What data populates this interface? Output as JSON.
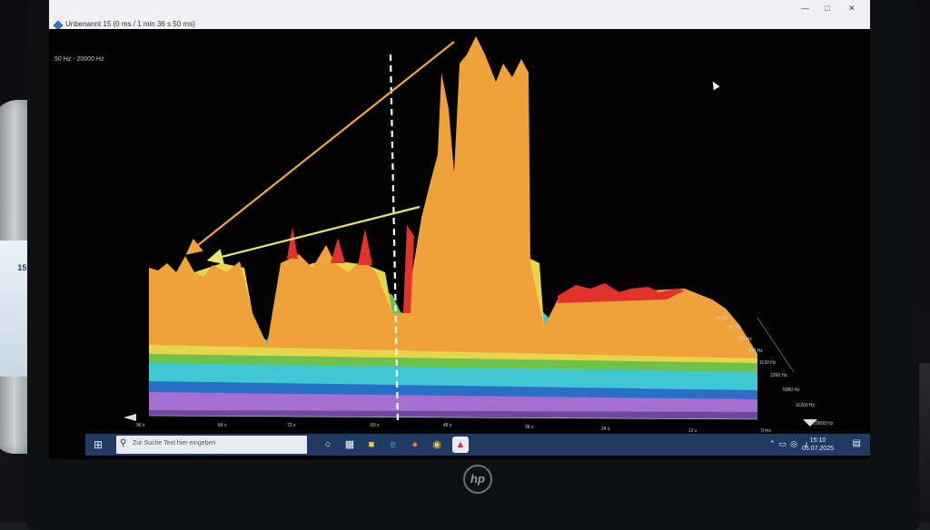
{
  "window": {
    "title": "Unbenannt 15 (0 ms / 1 min 36 s 50 ms)",
    "minimize_icon": "minimize-icon",
    "maximize_icon": "maximize-icon",
    "close_icon": "close-icon"
  },
  "spectrum": {
    "range_label": "50 Hz - 20000 Hz",
    "freq_axis": [
      "45 Hz",
      "100 Hz",
      "225 Hz",
      "500 Hz",
      "1130 Hz",
      "2260 Hz",
      "5080 Hz",
      "11200 Hz",
      "20000 Hz"
    ],
    "time_axis": [
      "96 s",
      "84 s",
      "72 s",
      "60 s",
      "48 s",
      "36 s",
      "24 s",
      "12 s",
      "0 ms"
    ],
    "colors": {
      "red": "#e2332a",
      "orange": "#f0a23a",
      "yellow": "#e6d44a",
      "green": "#6cc24a",
      "cyan": "#3fc8d4",
      "blue": "#2a6fc7",
      "purple": "#a46fd0",
      "arrow_orange": "#f2a43b",
      "arrow_yellow": "#e9e56a",
      "marker_line": "#ffffff"
    }
  },
  "taskbar": {
    "start_icon": "windows-icon",
    "search_placeholder": "Zur Suche Text hier eingeben",
    "search_icon": "search-icon",
    "apps": [
      "cortana-icon",
      "task-view-icon",
      "file-explorer-icon",
      "edge-icon",
      "firefox-icon",
      "chrome-icon",
      "spectrum-app-icon"
    ],
    "time": "15:10",
    "date": "05.07.2025"
  },
  "environment": {
    "bottle_label": "15×",
    "laptop_brand": "hp"
  }
}
